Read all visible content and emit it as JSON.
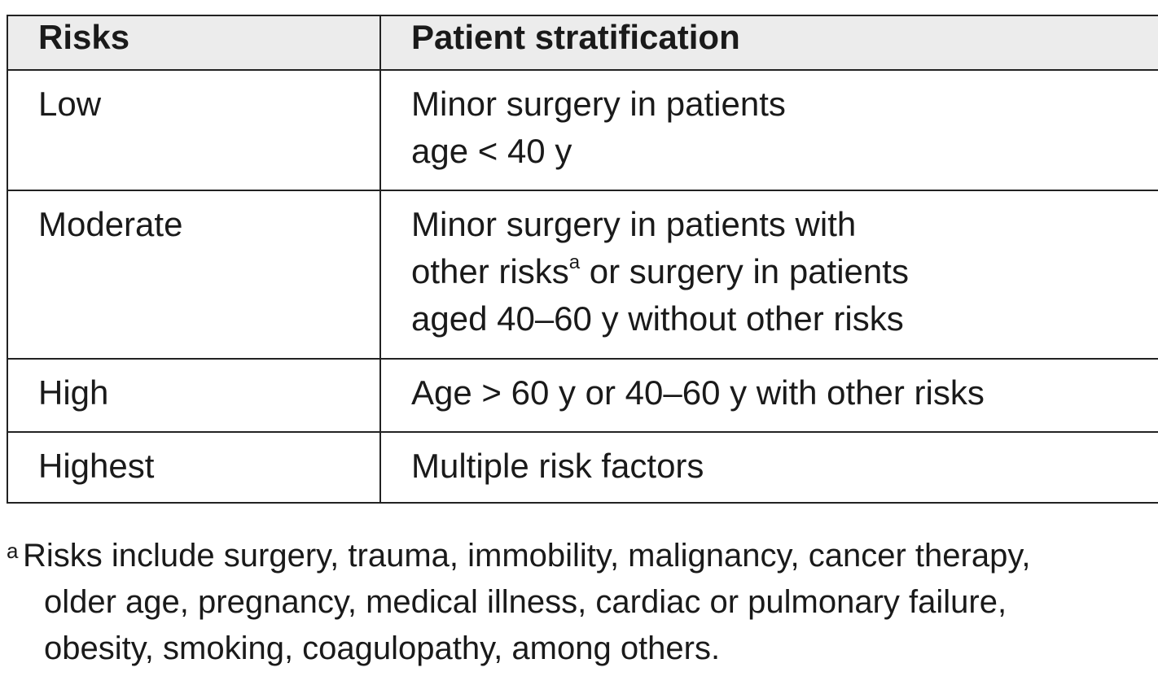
{
  "table": {
    "header": [
      "Risks",
      "Patient stratification"
    ],
    "rows": [
      [
        "Low",
        [
          "Minor surgery in patients",
          "age < 40 y"
        ]
      ],
      [
        "Moderate",
        [
          "Minor surgery in patients with",
          [
            {
              "text": "other risks"
            },
            {
              "sup": "a"
            },
            {
              "text": " or surgery in patients"
            }
          ],
          "aged 40–60 y without other risks"
        ]
      ],
      [
        "High",
        [
          "Age > 60 y or 40–60 y with other risks"
        ]
      ],
      [
        "Highest",
        [
          "Multiple risk factors"
        ]
      ]
    ]
  },
  "footnote": {
    "marker": "a",
    "lines": [
      "Risks include surgery, trauma, immobility, malignancy, cancer therapy,",
      "older age, pregnancy, medical illness, cardiac or pulmonary failure,",
      "obesity, smoking, coagulopathy, among others."
    ]
  }
}
